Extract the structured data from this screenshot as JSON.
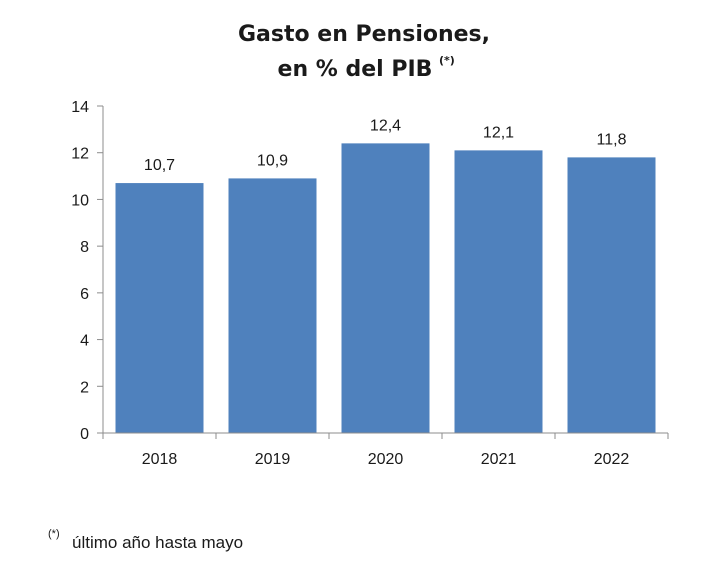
{
  "chart_data": {
    "type": "bar",
    "title": "Gasto en Pensiones,",
    "subtitle": "en % del PIB",
    "title_marker": "(*)",
    "categories": [
      "2018",
      "2019",
      "2020",
      "2021",
      "2022"
    ],
    "values": [
      10.7,
      10.9,
      12.4,
      12.1,
      11.8
    ],
    "data_labels": [
      "10,7",
      "10,9",
      "12,4",
      "12,1",
      "11,8"
    ],
    "xlabel": "",
    "ylabel": "",
    "ylim": [
      0,
      14
    ],
    "yticks": [
      0,
      2,
      4,
      6,
      8,
      10,
      12,
      14
    ],
    "grid": false,
    "bar_color": "#4f81bd",
    "axis_color": "#8c8c8c"
  },
  "footnote": {
    "marker": "(*)",
    "text": "último año hasta mayo"
  }
}
